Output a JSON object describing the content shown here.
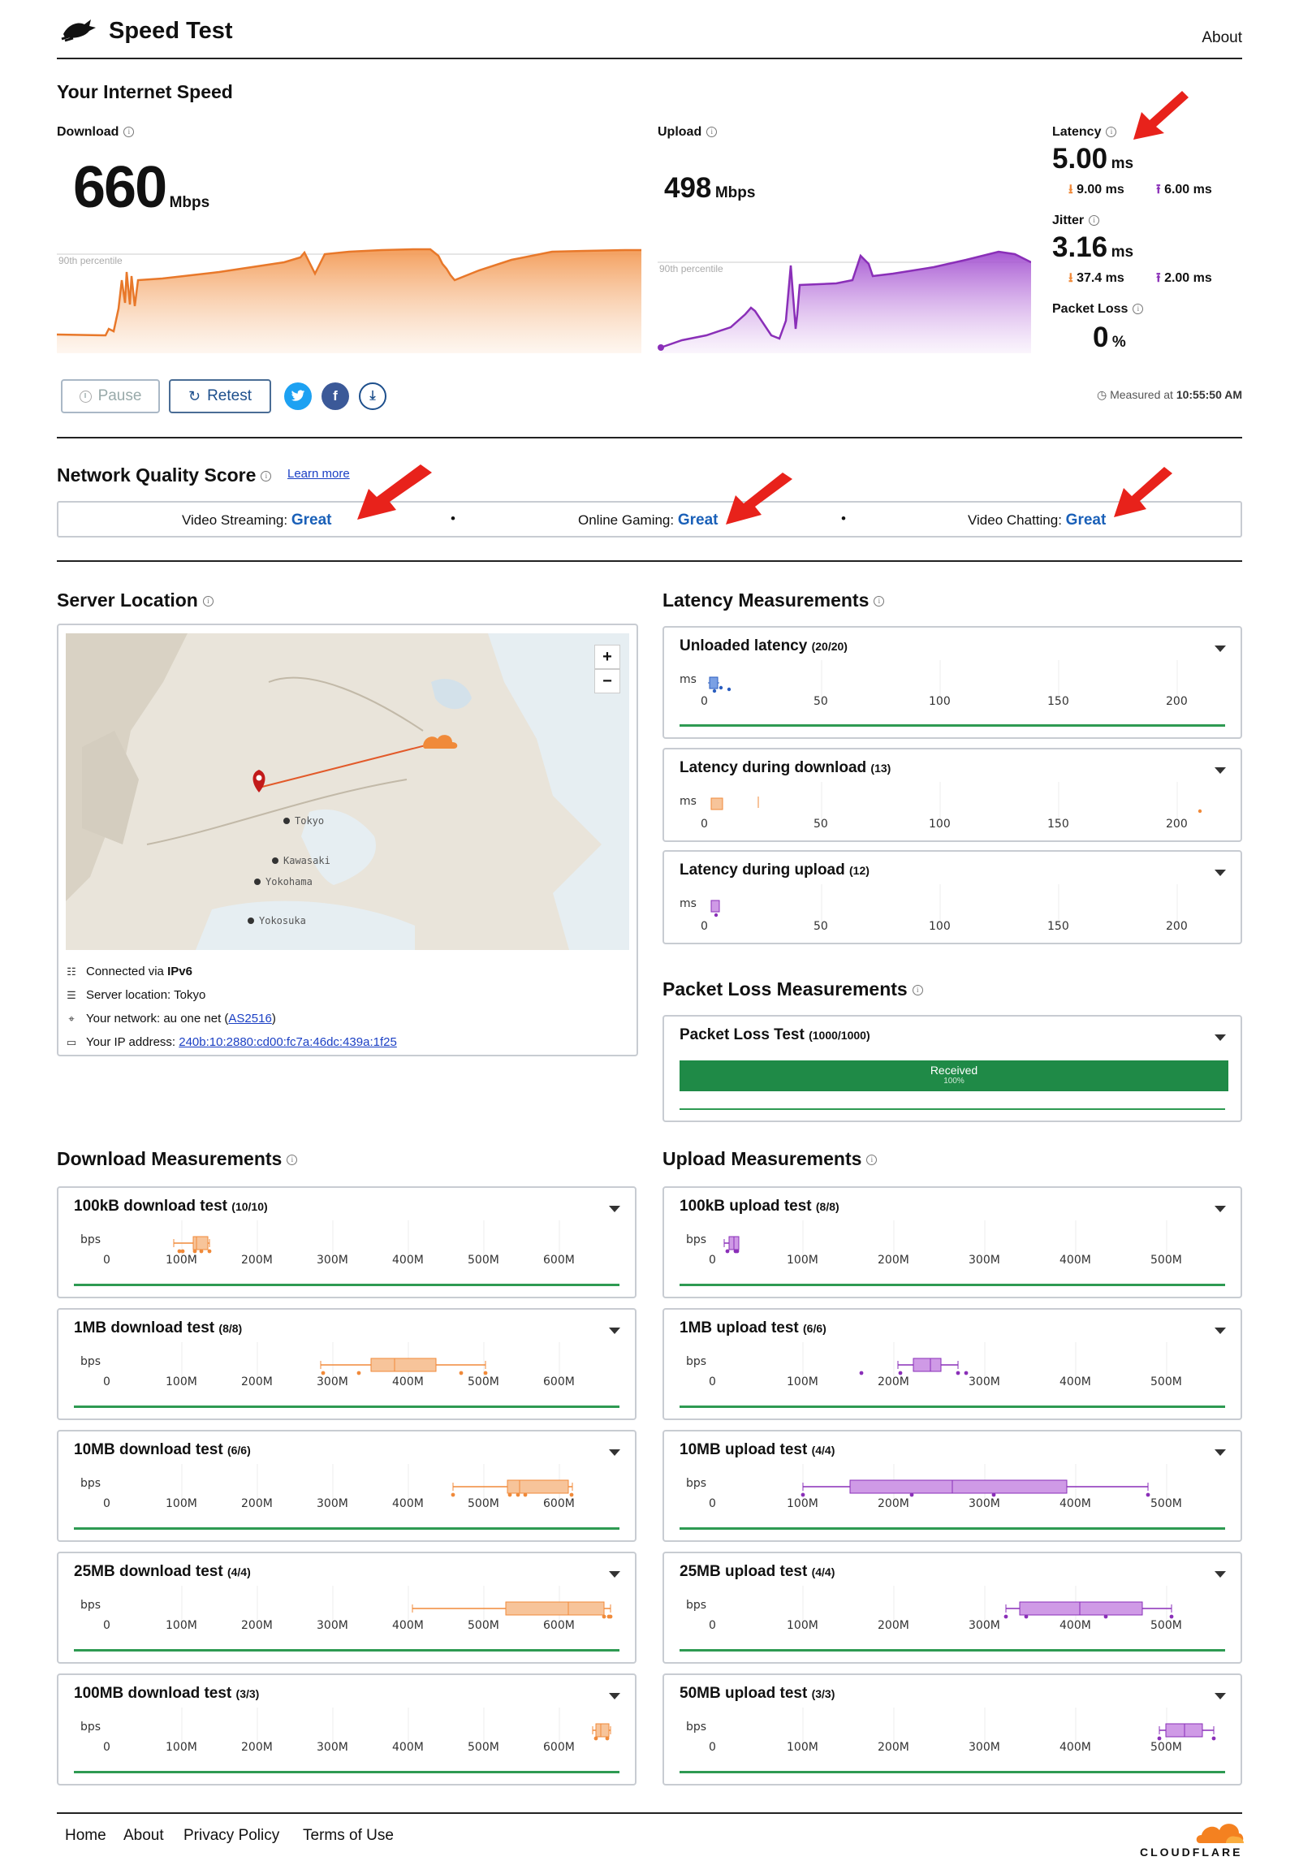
{
  "header": {
    "title": "Speed Test",
    "about": "About"
  },
  "speed": {
    "section_title": "Your Internet Speed",
    "download": {
      "label": "Download",
      "value": "660",
      "unit": "Mbps",
      "percentile_label": "90th percentile"
    },
    "upload": {
      "label": "Upload",
      "value": "498",
      "unit": "Mbps",
      "percentile_label": "90th percentile"
    },
    "latency": {
      "label": "Latency",
      "value": "5.00",
      "unit": "ms",
      "down": "9.00 ms",
      "up": "6.00 ms"
    },
    "jitter": {
      "label": "Jitter",
      "value": "3.16",
      "unit": "ms",
      "down": "37.4 ms",
      "up": "2.00 ms"
    },
    "packet_loss": {
      "label": "Packet Loss",
      "value": "0",
      "unit": "%"
    },
    "pause": "Pause",
    "retest": "Retest",
    "measured_prefix": "Measured at",
    "measured_time": "10:55:50 AM"
  },
  "nqs": {
    "title": "Network Quality Score",
    "learn_more": "Learn more",
    "streaming_label": "Video Streaming:",
    "streaming_value": "Great",
    "gaming_label": "Online Gaming:",
    "gaming_value": "Great",
    "chatting_label": "Video Chatting:",
    "chatting_value": "Great"
  },
  "server": {
    "title": "Server Location",
    "map_labels": [
      "Tokyo",
      "Kawasaki",
      "Yokohama",
      "Yokosuka"
    ],
    "zoom_in": "+",
    "zoom_out": "−",
    "connected_prefix": "Connected via",
    "connected_value": "IPv6",
    "location_prefix": "Server location:",
    "location_value": "Tokyo",
    "network_prefix": "Your network:",
    "network_value": "au one net",
    "network_as": "AS2516",
    "ip_prefix": "Your IP address:",
    "ip_value": "240b:10:2880:cd00:fc7a:46dc:439a:1f25"
  },
  "latency_measurements": {
    "title": "Latency Measurements",
    "unit": "ms",
    "ticks": [
      "0",
      "50",
      "100",
      "150",
      "200"
    ],
    "cards": [
      {
        "title": "Unloaded latency",
        "count": "(20/20)"
      },
      {
        "title": "Latency during download",
        "count": "(13)"
      },
      {
        "title": "Latency during upload",
        "count": "(12)"
      }
    ]
  },
  "packet_loss_measurements": {
    "title": "Packet Loss Measurements",
    "card_title": "Packet Loss Test",
    "count": "(1000/1000)",
    "received_label": "Received",
    "received_pct": "100%",
    "received_fraction": 1.0
  },
  "download_measurements": {
    "title": "Download Measurements",
    "unit": "bps",
    "ticks": [
      "0",
      "100M",
      "200M",
      "300M",
      "400M",
      "500M",
      "600M"
    ],
    "cards": [
      {
        "title": "100kB download test",
        "count": "(10/10)"
      },
      {
        "title": "1MB download test",
        "count": "(8/8)"
      },
      {
        "title": "10MB download test",
        "count": "(6/6)"
      },
      {
        "title": "25MB download test",
        "count": "(4/4)"
      },
      {
        "title": "100MB download test",
        "count": "(3/3)"
      }
    ]
  },
  "upload_measurements": {
    "title": "Upload Measurements",
    "unit": "bps",
    "ticks": [
      "0",
      "100M",
      "200M",
      "300M",
      "400M",
      "500M"
    ],
    "cards": [
      {
        "title": "100kB upload test",
        "count": "(8/8)"
      },
      {
        "title": "1MB upload test",
        "count": "(6/6)"
      },
      {
        "title": "10MB upload test",
        "count": "(4/4)"
      },
      {
        "title": "25MB upload test",
        "count": "(4/4)"
      },
      {
        "title": "50MB upload test",
        "count": "(3/3)"
      }
    ]
  },
  "footer": {
    "links": [
      "Home",
      "About",
      "Privacy Policy",
      "Terms of Use"
    ],
    "brand": "CLOUDFLARE"
  },
  "colors": {
    "download": "#f08a3a",
    "download_fill": "#f7c49a",
    "upload": "#8a2fb8",
    "upload_fill": "#cf9ae6",
    "unloaded": "#2a5dbf",
    "great": "#1a60b8",
    "received_bar": "#1f8a47",
    "arrow": "#e8221b"
  }
}
